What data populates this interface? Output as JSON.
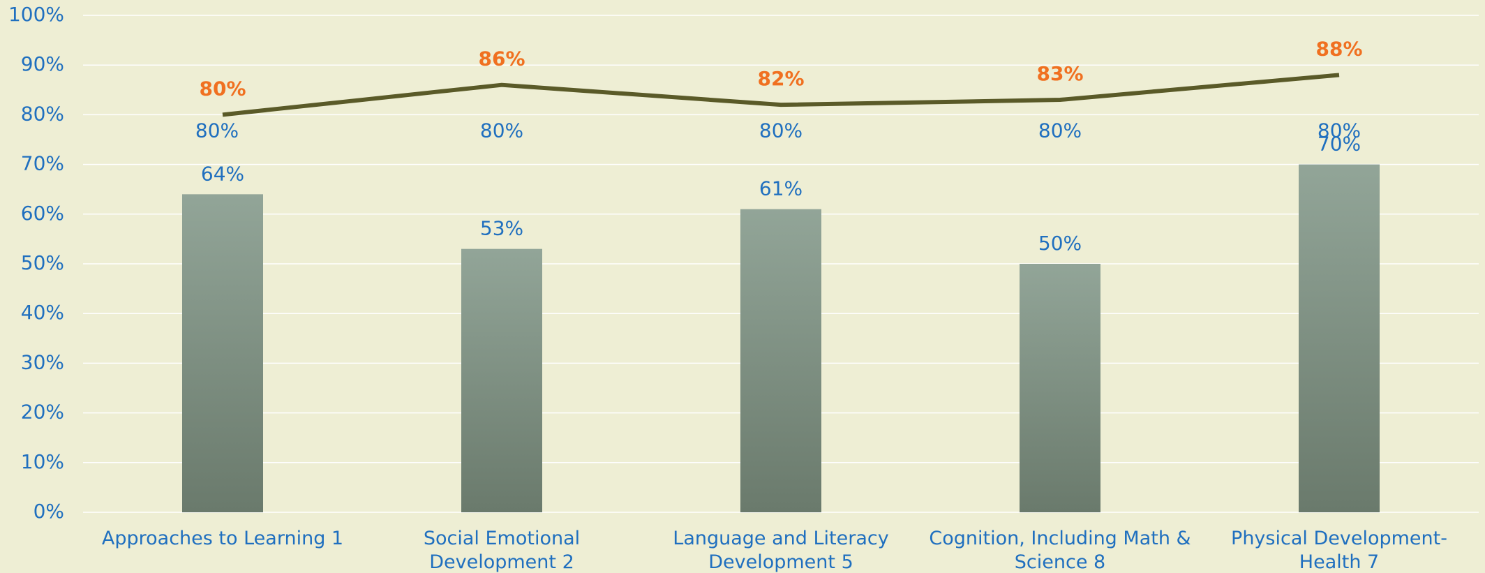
{
  "chart_data": {
    "type": "combo",
    "categories": [
      "Approaches to Learning 1",
      "Social Emotional Development 2",
      "Language and Literacy Development 5",
      "Cognition, Including Math & Science 8",
      "Physical Development- Health 7"
    ],
    "series": [
      {
        "type": "bar",
        "color": "#7f9183",
        "values": [
          64,
          53,
          61,
          50,
          70
        ],
        "value_labels": [
          "64%",
          "53%",
          "61%",
          "50%",
          "70%"
        ],
        "label_color": "#1f6fbf"
      },
      {
        "type": "line",
        "color": "#5a5a28",
        "values": [
          80,
          86,
          82,
          83,
          88
        ],
        "value_labels": [
          "80%",
          "86%",
          "82%",
          "83%",
          "88%"
        ],
        "label_color": "#f07020"
      },
      {
        "type": "line",
        "color": "#92c45a",
        "values": [
          80,
          80,
          80,
          80,
          80
        ],
        "value_labels": [
          "80%",
          "80%",
          "80%",
          "80%",
          "80%"
        ],
        "label_color": "#1f6fbf"
      }
    ],
    "ylim": [
      0,
      100
    ],
    "yticks": [
      {
        "value": 0,
        "label": "0%"
      },
      {
        "value": 10,
        "label": "10%"
      },
      {
        "value": 20,
        "label": "20%"
      },
      {
        "value": 30,
        "label": "30%"
      },
      {
        "value": 40,
        "label": "40%"
      },
      {
        "value": 50,
        "label": "50%"
      },
      {
        "value": 60,
        "label": "60%"
      },
      {
        "value": 70,
        "label": "70%"
      },
      {
        "value": 80,
        "label": "80%"
      },
      {
        "value": 90,
        "label": "90%"
      },
      {
        "value": 100,
        "label": "100%"
      }
    ],
    "grid": true
  }
}
